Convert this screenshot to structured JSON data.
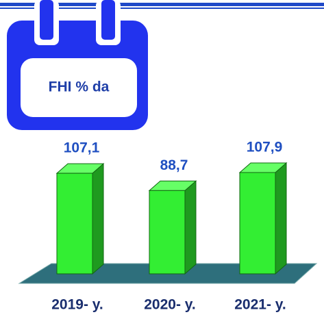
{
  "chart_data": {
    "type": "bar3d",
    "title": "FHI % da",
    "categories": [
      "2019- y.",
      "2020- y.",
      "2021- y."
    ],
    "values": [
      107.1,
      88.7,
      107.9
    ],
    "value_labels": [
      "107,1",
      "88,7",
      "107,9"
    ],
    "color": "#33ee33"
  }
}
